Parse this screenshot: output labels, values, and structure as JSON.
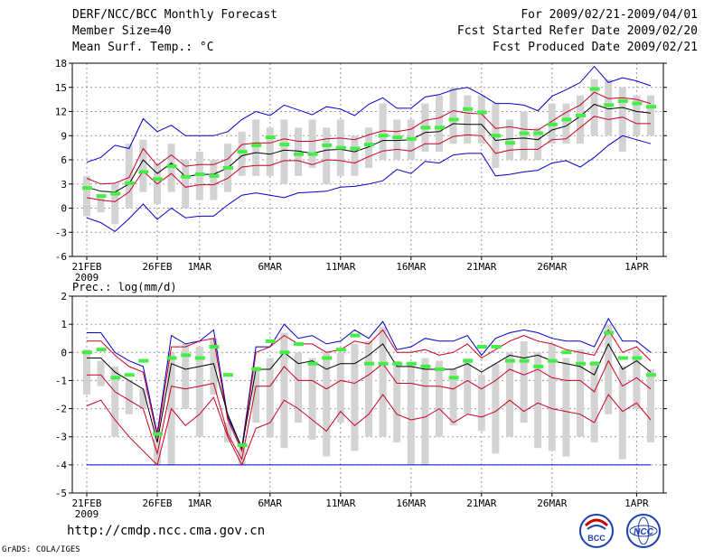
{
  "header": {
    "title": "DERF/NCC/BCC Monthly Forecast",
    "member_size": "Member Size=40",
    "variable": "Mean Surf. Temp.: °C",
    "period": "For 2009/02/21-2009/04/01",
    "refer_date": "Fcst Started Refer Date 2009/02/20",
    "produced_date": "Fcst Produced Date 2009/02/21"
  },
  "footer": {
    "url": "http://cmdp.ncc.cma.gov.cn",
    "grads": "GrADS: COLA/IGES",
    "logo_left_text": "BCC",
    "logo_right_text": "NCC"
  },
  "colors": {
    "max_min": "#0000cc",
    "spread": "#cc0022",
    "mean": "#000000",
    "box": "#d3d3d3",
    "obs": "#44ee44",
    "grid": "#9a9a9a"
  },
  "chart_data": [
    {
      "type": "line",
      "title": "Mean Surf. Temp.: °C",
      "ylim": [
        -6,
        18
      ],
      "yticks": [
        -6,
        -3,
        0,
        3,
        6,
        9,
        12,
        15,
        18
      ],
      "xtick_labels": [
        "21FEB",
        "26FEB",
        "1MAR",
        "6MAR",
        "11MAR",
        "16MAR",
        "21MAR",
        "26MAR",
        "1APR"
      ],
      "xtick_days": [
        0,
        5,
        8,
        13,
        18,
        23,
        28,
        33,
        39
      ],
      "year_label": "2009",
      "series": {
        "mean": [
          2.6,
          2.1,
          2.0,
          3.0,
          6.0,
          4.3,
          5.6,
          3.9,
          4.2,
          4.2,
          5.0,
          6.5,
          6.9,
          6.7,
          7.2,
          7.1,
          6.8,
          7.2,
          7.3,
          7.0,
          7.6,
          8.4,
          8.4,
          8.5,
          9.4,
          9.5,
          10.5,
          10.4,
          10.4,
          8.4,
          8.6,
          8.7,
          8.5,
          9.7,
          10.2,
          11.4,
          12.9,
          12.3,
          12.5,
          12.0,
          11.8
        ],
        "upper_spread": [
          3.7,
          3.0,
          3.1,
          3.8,
          7.4,
          5.3,
          6.6,
          5.2,
          5.4,
          5.4,
          6.1,
          7.9,
          8.1,
          8.1,
          8.6,
          8.3,
          8.3,
          8.6,
          8.7,
          8.5,
          9.1,
          9.6,
          9.5,
          9.8,
          10.9,
          11.2,
          12.1,
          11.8,
          11.7,
          9.9,
          10.1,
          9.8,
          9.7,
          10.8,
          11.9,
          12.8,
          14.4,
          13.6,
          13.7,
          13.5,
          13.0
        ],
        "lower_spread": [
          1.3,
          1.0,
          0.8,
          2.0,
          4.6,
          3.0,
          4.3,
          2.6,
          2.9,
          2.9,
          3.7,
          5.1,
          5.3,
          5.3,
          5.9,
          5.9,
          5.4,
          6.0,
          5.9,
          5.6,
          6.4,
          7.1,
          7.3,
          7.1,
          8.0,
          8.0,
          8.9,
          9.1,
          9.0,
          6.8,
          7.2,
          7.3,
          7.3,
          8.5,
          8.6,
          10.0,
          11.4,
          11.0,
          11.3,
          10.5,
          10.5
        ],
        "max": [
          5.7,
          6.3,
          7.8,
          7.4,
          11.1,
          9.5,
          10.3,
          9.0,
          9.0,
          9.0,
          9.5,
          11.0,
          12.0,
          11.5,
          12.8,
          12.2,
          11.6,
          12.6,
          12.3,
          11.5,
          12.9,
          13.7,
          12.4,
          12.4,
          13.8,
          14.1,
          14.7,
          15.0,
          14.1,
          13.0,
          13.0,
          12.8,
          12.1,
          13.9,
          14.7,
          15.6,
          17.6,
          15.6,
          16.2,
          15.8,
          15.2
        ],
        "min": [
          -1.2,
          -1.8,
          -2.9,
          -1.3,
          0.5,
          -1.4,
          0.0,
          -1.2,
          -1.0,
          -1.0,
          0.4,
          1.6,
          1.9,
          1.6,
          1.3,
          1.9,
          2.0,
          2.1,
          2.6,
          2.7,
          3.0,
          3.4,
          4.8,
          4.3,
          5.8,
          5.6,
          6.6,
          6.8,
          6.8,
          4.0,
          4.2,
          4.5,
          4.7,
          5.6,
          5.9,
          5.1,
          6.3,
          7.8,
          9.0,
          8.5,
          8.0
        ],
        "box_top": [
          4.0,
          1.5,
          3.0,
          8.0,
          8.5,
          5.5,
          8.0,
          6.0,
          7.0,
          6.0,
          8.0,
          9.5,
          11.0,
          10.0,
          11.0,
          10.0,
          11.0,
          10.0,
          11.0,
          9.0,
          10.0,
          13.0,
          11.0,
          11.0,
          13.0,
          14.0,
          15.0,
          14.0,
          14.0,
          13.0,
          11.0,
          12.0,
          10.0,
          13.0,
          13.0,
          14.0,
          16.0,
          16.0,
          15.0,
          14.0,
          14.0
        ],
        "box_bottom": [
          -1.0,
          -0.5,
          -2.0,
          0.0,
          2.0,
          0.5,
          2.0,
          0.0,
          1.0,
          1.0,
          2.0,
          4.0,
          4.0,
          4.0,
          3.0,
          4.0,
          5.0,
          3.0,
          4.0,
          4.0,
          5.0,
          6.0,
          6.0,
          6.0,
          7.0,
          7.0,
          8.0,
          8.0,
          8.0,
          5.0,
          6.0,
          6.0,
          6.0,
          8.0,
          8.0,
          8.0,
          9.0,
          9.0,
          7.0,
          9.0,
          9.0
        ],
        "obs": [
          2.5,
          1.5,
          1.8,
          3.1,
          4.5,
          3.6,
          5.2,
          3.9,
          4.2,
          4.0,
          5.0,
          7.0,
          7.8,
          8.8,
          7.9,
          6.7,
          6.7,
          7.8,
          7.5,
          7.4,
          7.9,
          9.0,
          8.8,
          8.6,
          10.0,
          10.0,
          11.0,
          12.3,
          11.9,
          9.0,
          8.1,
          9.3,
          9.3,
          10.4,
          11.0,
          11.5,
          14.8,
          12.8,
          13.3,
          13.0,
          12.6
        ]
      }
    },
    {
      "type": "line",
      "title": "Prec.: log(mm/d)",
      "ylim": [
        -5,
        2
      ],
      "yticks": [
        -5,
        -4,
        -3,
        -2,
        -1,
        0,
        1,
        2
      ],
      "xtick_labels": [
        "21FEB",
        "26FEB",
        "1MAR",
        "6MAR",
        "11MAR",
        "16MAR",
        "21MAR",
        "26MAR",
        "1APR"
      ],
      "xtick_days": [
        0,
        5,
        8,
        13,
        18,
        23,
        28,
        33,
        39
      ],
      "year_label": "2009",
      "series": {
        "mean": [
          -0.2,
          -0.2,
          -0.7,
          -1.0,
          -1.3,
          -3.2,
          -0.4,
          -0.6,
          -0.5,
          -0.4,
          -2.2,
          -3.4,
          -0.6,
          -0.6,
          0.0,
          -0.4,
          -0.3,
          -0.6,
          -0.4,
          -0.4,
          -0.1,
          0.3,
          -0.5,
          -0.5,
          -0.6,
          -0.6,
          -0.6,
          -0.4,
          -0.7,
          -0.4,
          -0.1,
          -0.2,
          -0.1,
          -0.3,
          -0.4,
          -0.5,
          -0.8,
          0.3,
          -0.6,
          -0.3,
          -0.7
        ],
        "upper_spread": [
          0.4,
          0.4,
          -0.1,
          -0.5,
          -0.7,
          -3.0,
          0.2,
          0.2,
          0.4,
          0.5,
          -2.4,
          -3.5,
          0.0,
          0.2,
          0.6,
          0.3,
          0.3,
          0.0,
          0.1,
          0.4,
          0.3,
          0.8,
          0.0,
          0.0,
          0.1,
          -0.1,
          0.0,
          0.3,
          -0.2,
          0.1,
          0.4,
          0.6,
          0.4,
          0.3,
          0.1,
          0.0,
          -0.1,
          0.8,
          0.0,
          0.2,
          -0.3
        ],
        "lower_spread": [
          -0.8,
          -0.8,
          -1.4,
          -1.7,
          -2.0,
          -3.6,
          -1.2,
          -1.3,
          -1.2,
          -1.1,
          -2.9,
          -3.8,
          -1.2,
          -1.2,
          -0.5,
          -1.0,
          -1.0,
          -1.3,
          -1.0,
          -1.1,
          -0.8,
          -0.4,
          -1.1,
          -1.1,
          -1.2,
          -1.2,
          -1.3,
          -1.0,
          -1.3,
          -1.0,
          -0.6,
          -0.8,
          -0.6,
          -0.9,
          -1.0,
          -1.0,
          -1.4,
          -0.3,
          -1.2,
          -0.9,
          -1.3
        ],
        "max": [
          0.7,
          0.7,
          0.0,
          -0.3,
          -0.5,
          -2.9,
          0.6,
          0.3,
          0.4,
          0.8,
          -2.3,
          -3.4,
          0.2,
          0.2,
          1.0,
          0.5,
          0.6,
          0.3,
          0.4,
          0.8,
          0.5,
          1.1,
          0.1,
          0.2,
          0.5,
          0.4,
          0.4,
          0.6,
          -0.1,
          0.5,
          0.7,
          0.8,
          0.7,
          0.5,
          0.4,
          0.4,
          0.2,
          1.2,
          0.4,
          0.4,
          0.0
        ],
        "lower_bound": [
          -1.9,
          -1.7,
          -2.4,
          -3.0,
          -3.5,
          -4.0,
          -2.0,
          -2.6,
          -2.2,
          -1.6,
          -3.0,
          -4.0,
          -2.7,
          -2.5,
          -1.7,
          -2.0,
          -2.4,
          -2.8,
          -2.1,
          -2.6,
          -2.2,
          -1.5,
          -2.2,
          -2.4,
          -2.3,
          -2.0,
          -2.5,
          -2.2,
          -2.3,
          -2.1,
          -1.7,
          -2.1,
          -1.8,
          -2.0,
          -2.1,
          -2.2,
          -2.5,
          -1.5,
          -2.1,
          -1.8,
          -2.4
        ],
        "min": [
          -4.0,
          -4.0,
          -4.0,
          -4.0,
          -4.0,
          -4.0,
          -4.0,
          -4.0,
          -4.0,
          -4.0,
          -4.0,
          -4.0,
          -4.0,
          -4.0,
          -4.0,
          -4.0,
          -4.0,
          -4.0,
          -4.0,
          -4.0,
          -4.0,
          -4.0,
          -4.0,
          -4.0,
          -4.0,
          -4.0,
          -4.0,
          -4.0,
          -4.0,
          -4.0,
          -4.0,
          -4.0,
          -4.0,
          -4.0,
          -4.0,
          -4.0,
          -4.0,
          -4.0,
          -4.0,
          -4.0,
          -4.0
        ],
        "box_top": [
          0.1,
          -0.3,
          -0.5,
          -1.0,
          -1.3,
          -3.0,
          0.0,
          0.3,
          0.2,
          0.5,
          -2.5,
          -3.4,
          -0.5,
          -0.2,
          0.7,
          0.0,
          -0.2,
          0.0,
          0.0,
          0.3,
          0.4,
          0.9,
          -0.3,
          -0.4,
          -0.2,
          -0.3,
          -0.6,
          -0.2,
          -0.8,
          -0.4,
          0.0,
          0.4,
          0.0,
          0.3,
          -0.2,
          0.1,
          -0.3,
          1.0,
          -0.5,
          0.1,
          -0.6
        ],
        "box_bottom": [
          -1.5,
          -1.2,
          -3.0,
          -2.2,
          -2.0,
          -4.0,
          -4.0,
          -2.0,
          -3.0,
          -1.5,
          -3.2,
          -4.0,
          -2.5,
          -3.0,
          -3.4,
          -2.5,
          -3.1,
          -3.7,
          -2.5,
          -3.5,
          -3.0,
          -3.0,
          -3.2,
          -4.0,
          -4.0,
          -3.0,
          -2.6,
          -2.2,
          -2.8,
          -3.6,
          -3.0,
          -2.5,
          -3.4,
          -3.5,
          -3.7,
          -3.0,
          -3.2,
          -2.2,
          -3.8,
          -2.0,
          -3.2
        ],
        "obs": [
          0.0,
          0.1,
          -0.9,
          -0.8,
          -0.3,
          -2.9,
          -0.2,
          -0.1,
          -0.2,
          0.2,
          -0.8,
          -3.3,
          -0.6,
          0.4,
          0.0,
          0.3,
          -0.4,
          -0.2,
          0.1,
          0.6,
          -0.4,
          -0.4,
          -0.4,
          -0.4,
          -0.5,
          -0.6,
          -0.9,
          -0.3,
          0.2,
          0.2,
          -0.3,
          -0.3,
          -0.5,
          -0.3,
          0.0,
          -0.4,
          -0.4,
          0.7,
          -0.2,
          -0.2,
          -0.8
        ]
      }
    }
  ]
}
